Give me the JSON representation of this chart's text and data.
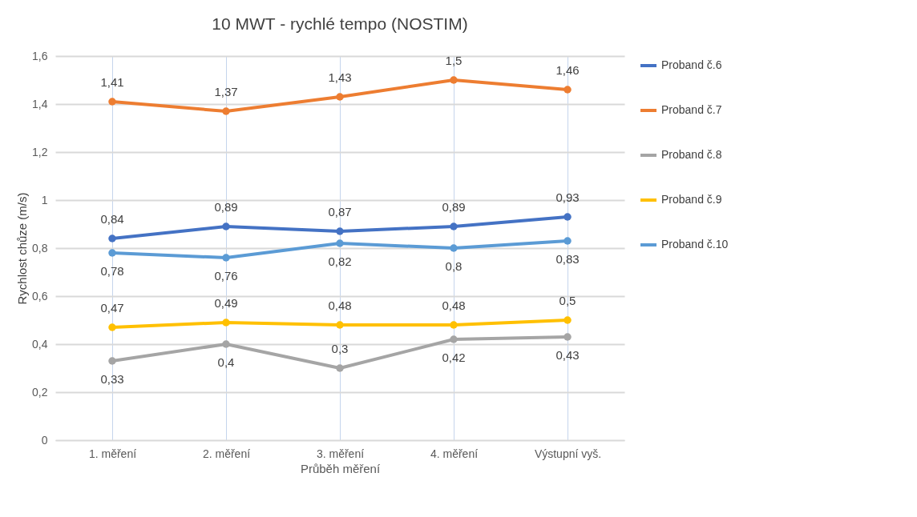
{
  "chart_data": {
    "type": "line",
    "title": "10 MWT - rychlé tempo (NOSTIM)",
    "xlabel": "Průběh měření",
    "ylabel": "Rychlost chůze (m/s)",
    "categories": [
      "1. měření",
      "2. měření",
      "3. měření",
      "4. měření",
      "Výstupní vyš."
    ],
    "series": [
      {
        "name": "Proband č.6",
        "color": "#4472c4",
        "values": [
          0.84,
          0.89,
          0.87,
          0.89,
          0.93
        ],
        "value_labels": [
          "0,84",
          "0,89",
          "0,87",
          "0,89",
          "0,93"
        ]
      },
      {
        "name": "Proband č.7",
        "color": "#ed7d31",
        "values": [
          1.41,
          1.37,
          1.43,
          1.5,
          1.46
        ],
        "value_labels": [
          "1,41",
          "1,37",
          "1,43",
          "1,5",
          "1,46"
        ]
      },
      {
        "name": "Proband č.8",
        "color": "#a5a5a5",
        "values": [
          0.33,
          0.4,
          0.3,
          0.42,
          0.43
        ],
        "value_labels": [
          "0,33",
          "0,4",
          "0,3",
          "0,42",
          "0,43"
        ]
      },
      {
        "name": "Proband č.9",
        "color": "#ffc000",
        "values": [
          0.47,
          0.49,
          0.48,
          0.48,
          0.5
        ],
        "value_labels": [
          "0,47",
          "0,49",
          "0,48",
          "0,48",
          "0,5"
        ]
      },
      {
        "name": "Proband č.10",
        "color": "#5b9bd5",
        "values": [
          0.78,
          0.76,
          0.82,
          0.8,
          0.83
        ],
        "value_labels": [
          "0,78",
          "0,76",
          "0,82",
          "0,8",
          "0,83"
        ]
      }
    ],
    "ylim": [
      0,
      1.6
    ],
    "yticks": [
      0,
      {
        "value": 0.2,
        "label": "0,2"
      },
      {
        "value": 0.4,
        "label": "0,4"
      },
      {
        "value": 0.6,
        "label": "0,6"
      },
      {
        "value": 0.8,
        "label": "0,8"
      },
      1,
      {
        "value": 1.2,
        "label": "1,2"
      },
      {
        "value": 1.4,
        "label": "1,4"
      },
      {
        "value": 1.6,
        "label": "1,6"
      }
    ],
    "grid": true,
    "legend": "right",
    "marker": "circle",
    "line_style": "solid"
  }
}
